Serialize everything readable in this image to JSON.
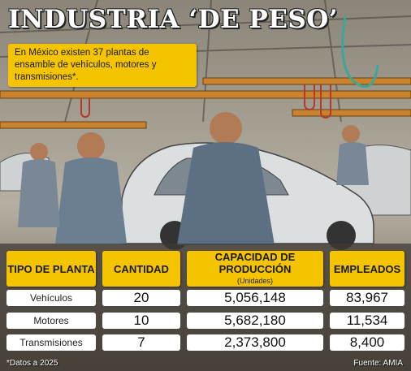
{
  "title": "INDUSTRIA ‘DE PESO’",
  "intro": "En México existen 37 plantas de ensamble de vehículos, motores y transmisiones*.",
  "colors": {
    "accent": "#f4c400",
    "cell_bg": "#ffffff",
    "text": "#1a1a1a"
  },
  "chart_data": {
    "type": "table",
    "columns": [
      {
        "label": "TIPO DE PLANTA",
        "unit": ""
      },
      {
        "label": "CANTIDAD",
        "unit": ""
      },
      {
        "label": "CAPACIDAD DE PRODUCCIÓN",
        "unit": "(Unidades)"
      },
      {
        "label": "EMPLEADOS",
        "unit": ""
      }
    ],
    "rows": [
      {
        "type": "Vehículos",
        "cantidad": "20",
        "capacidad": "5,056,148",
        "empleados": "83,967"
      },
      {
        "type": "Motores",
        "cantidad": "10",
        "capacidad": "5,682,180",
        "empleados": "11,534"
      },
      {
        "type": "Transmisiones",
        "cantidad": "7",
        "capacidad": "2,373,800",
        "empleados": "8,400"
      }
    ]
  },
  "footnote": "*Datos a 2025",
  "source": "Fuente: AMIA"
}
